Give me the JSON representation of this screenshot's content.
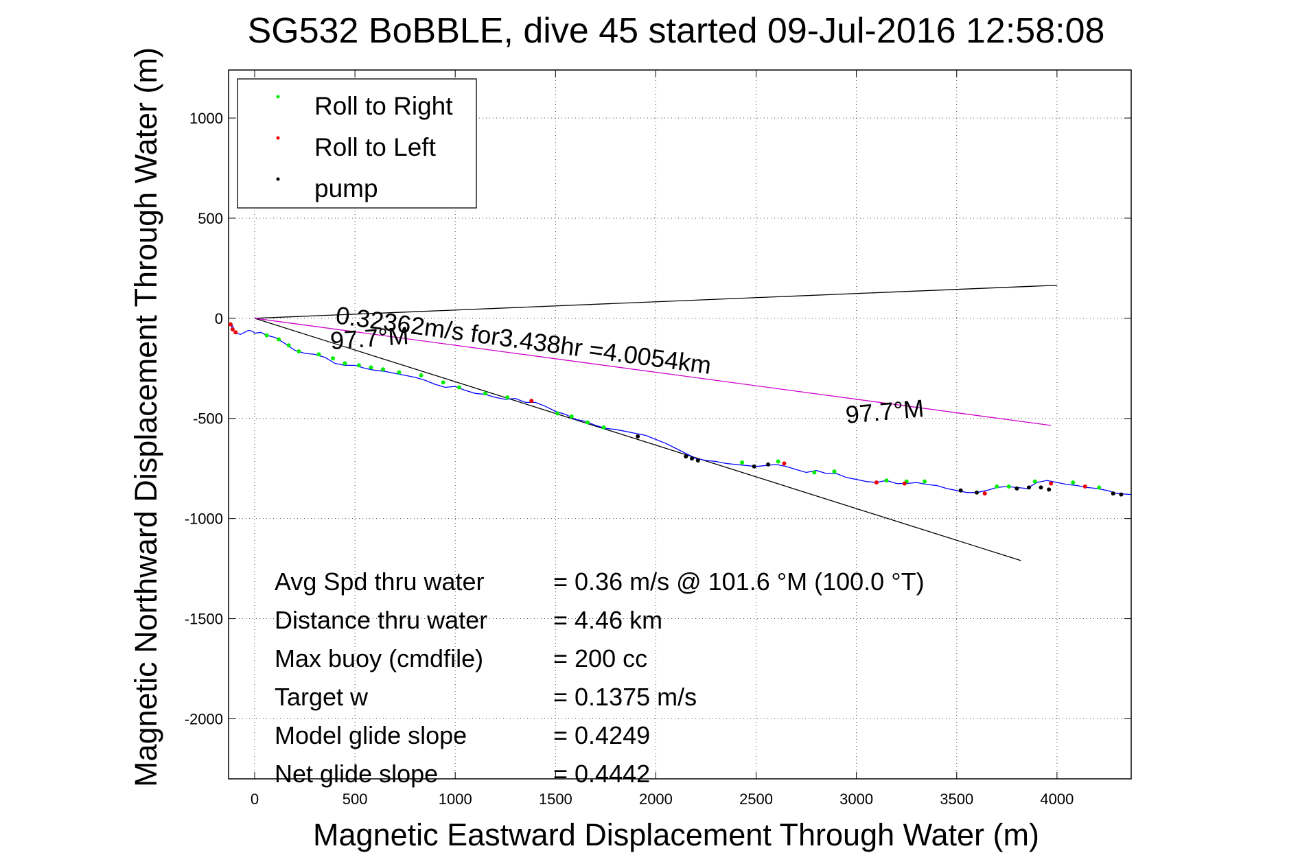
{
  "chart_data": {
    "type": "line",
    "title": "SG532 BoBBLE, dive 45 started 09-Jul-2016 12:58:08",
    "xlabel": "Magnetic Eastward Displacement Through Water (m)",
    "ylabel": "Magnetic Northward Displacement Through Water (m)",
    "xlim": [
      -130,
      4370
    ],
    "ylim": [
      -2300,
      1240
    ],
    "xticks": [
      0,
      500,
      1000,
      1500,
      2000,
      2500,
      3000,
      3500,
      4000
    ],
    "yticks": [
      1000,
      500,
      0,
      -500,
      -1000,
      -1500,
      -2000
    ],
    "grid": true,
    "legend": {
      "placement": "top-left",
      "entries": [
        {
          "label": "Roll to Right",
          "color": "#00ee00"
        },
        {
          "label": "Roll to Left",
          "color": "#ee0000"
        },
        {
          "label": "pump",
          "color": "#000000"
        }
      ]
    },
    "lines": [
      {
        "name": "heading-line-upper",
        "color": "#000000",
        "x": [
          0,
          4000
        ],
        "y": [
          0,
          165
        ]
      },
      {
        "name": "heading-line-lower",
        "color": "#000000",
        "x": [
          0,
          3820
        ],
        "y": [
          0,
          -1210
        ]
      },
      {
        "name": "speed-vector",
        "color": "#cc00cc",
        "x": [
          0,
          3970
        ],
        "y": [
          0,
          -535
        ]
      }
    ],
    "track": {
      "name": "glider-track",
      "color": "#0000ff",
      "x": [
        -105,
        -120,
        -110,
        -95,
        -70,
        -50,
        -30,
        -10,
        0,
        30,
        60,
        100,
        150,
        200,
        250,
        300,
        350,
        400,
        450,
        500,
        550,
        600,
        650,
        700,
        750,
        800,
        850,
        900,
        950,
        1000,
        1050,
        1100,
        1150,
        1200,
        1250,
        1300,
        1350,
        1400,
        1450,
        1500,
        1550,
        1600,
        1650,
        1700,
        1750,
        1800,
        1850,
        1900,
        1950,
        2000,
        2050,
        2100,
        2150,
        2200,
        2250,
        2300,
        2350,
        2400,
        2450,
        2500,
        2550,
        2600,
        2650,
        2700,
        2750,
        2800,
        2850,
        2900,
        2950,
        3000,
        3050,
        3100,
        3150,
        3200,
        3250,
        3300,
        3350,
        3400,
        3450,
        3500,
        3550,
        3600,
        3650,
        3700,
        3750,
        3800,
        3850,
        3900,
        3950,
        4000,
        4050,
        4100,
        4150,
        4200,
        4250,
        4300,
        4370
      ],
      "y": [
        -45,
        -25,
        -55,
        -75,
        -80,
        -70,
        -60,
        -65,
        -75,
        -70,
        -85,
        -95,
        -125,
        -160,
        -175,
        -180,
        -195,
        -225,
        -235,
        -235,
        -250,
        -260,
        -265,
        -275,
        -285,
        -295,
        -310,
        -330,
        -345,
        -340,
        -360,
        -375,
        -380,
        -395,
        -405,
        -400,
        -420,
        -420,
        -440,
        -465,
        -480,
        -505,
        -515,
        -535,
        -550,
        -555,
        -565,
        -575,
        -585,
        -605,
        -625,
        -650,
        -675,
        -700,
        -710,
        -715,
        -725,
        -730,
        -735,
        -740,
        -735,
        -730,
        -740,
        -755,
        -770,
        -760,
        -775,
        -775,
        -795,
        -805,
        -815,
        -820,
        -810,
        -825,
        -825,
        -820,
        -830,
        -835,
        -850,
        -860,
        -870,
        -870,
        -860,
        -845,
        -840,
        -845,
        -850,
        -820,
        -810,
        -820,
        -830,
        -835,
        -845,
        -850,
        -860,
        -875,
        -880
      ]
    },
    "markers": {
      "roll_right": {
        "color": "#00ee00",
        "x": [
          60,
          120,
          170,
          220,
          320,
          390,
          450,
          520,
          580,
          640,
          720,
          830,
          940,
          1020,
          1150,
          1260,
          1510,
          1580,
          1660,
          1740,
          2430,
          2610,
          2790,
          2890,
          3150,
          3250,
          3340,
          3700,
          3760,
          3890,
          4080,
          4210
        ],
        "y": [
          -85,
          -105,
          -135,
          -165,
          -180,
          -200,
          -225,
          -235,
          -245,
          -255,
          -270,
          -285,
          -320,
          -345,
          -375,
          -395,
          -475,
          -490,
          -520,
          -545,
          -720,
          -715,
          -770,
          -765,
          -810,
          -815,
          -815,
          -840,
          -840,
          -815,
          -820,
          -845
        ]
      },
      "roll_left": {
        "color": "#ee0000",
        "x": [
          -120,
          -110,
          -95,
          1380,
          2640,
          3100,
          3240,
          3640,
          3970,
          4140
        ],
        "y": [
          -30,
          -55,
          -70,
          -412,
          -725,
          -820,
          -825,
          -875,
          -825,
          -840
        ]
      },
      "pump": {
        "color": "#000000",
        "x": [
          1910,
          2150,
          2180,
          2210,
          2490,
          2560,
          3520,
          3600,
          3800,
          3860,
          3920,
          3960,
          4280,
          4320
        ],
        "y": [
          -590,
          -690,
          -700,
          -710,
          -740,
          -730,
          -860,
          -870,
          -850,
          -845,
          -845,
          -855,
          -875,
          -880
        ]
      }
    },
    "annotations": [
      {
        "text": "0.32362m/s for3.438hr =4.0054km",
        "x": 400,
        "y": -25,
        "rotation": -7.7
      },
      {
        "text": "97.7°M",
        "x": 380,
        "y": -155,
        "rotation": 4
      },
      {
        "text": "97.7°M",
        "x": 2950,
        "y": -525,
        "rotation": 5
      }
    ],
    "stats": [
      {
        "label": "Avg Spd thru water",
        "value": "=  0.36 m/s @ 101.6 °M (100.0 °T)"
      },
      {
        "label": "Distance thru water",
        "value": "=  4.46 km"
      },
      {
        "label": "Max buoy (cmdfile)",
        "value": "= 200 cc"
      },
      {
        "label": "Target w",
        "value": "= 0.1375 m/s"
      },
      {
        "label": "Model glide slope",
        "value": "= 0.4249"
      },
      {
        "label": "Net glide slope",
        "value": "= 0.4442"
      }
    ]
  }
}
